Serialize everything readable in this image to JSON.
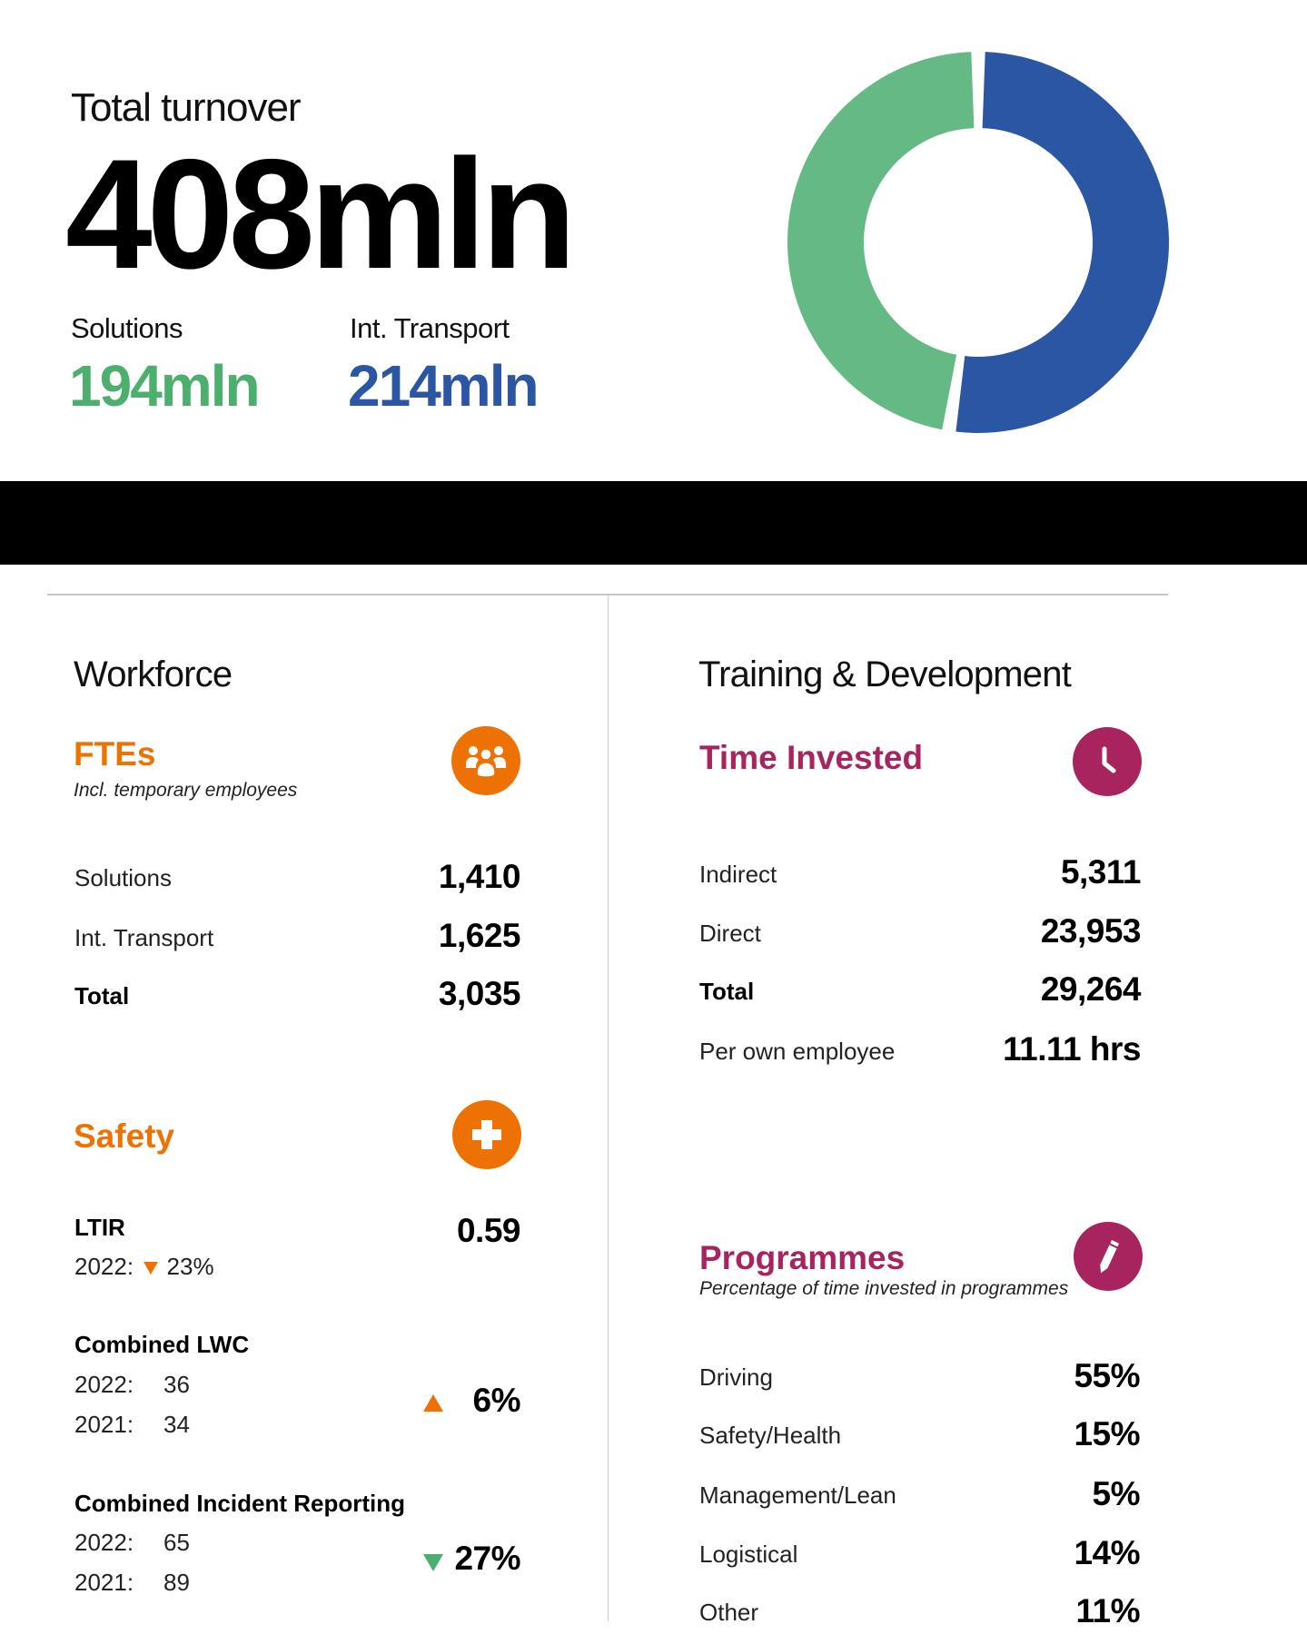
{
  "turnover": {
    "label": "Total turnover",
    "value": "408mln",
    "segments": [
      {
        "label": "Solutions",
        "value": "194mln",
        "color": "#4caf6e"
      },
      {
        "label": "Int. Transport",
        "value": "214mln",
        "color": "#2b56a4"
      }
    ]
  },
  "chart_data": {
    "type": "pie",
    "subtype": "donut",
    "title": "Total turnover",
    "total_label": "408mln",
    "categories": [
      "Solutions",
      "Int. Transport"
    ],
    "values": [
      194,
      214
    ],
    "units": "mln",
    "colors": [
      "#65b984",
      "#2b56a4"
    ],
    "legend": "none (labels shown as text left of chart)"
  },
  "workforce": {
    "title": "Workforce",
    "ftes": {
      "title": "FTEs",
      "caption": "Incl. temporary employees",
      "icon": "people-group-icon",
      "rows": [
        {
          "label": "Solutions",
          "value": "1,410"
        },
        {
          "label": "Int. Transport",
          "value": "1,625"
        },
        {
          "label": "Total",
          "value": "3,035",
          "bold": true
        }
      ]
    },
    "safety": {
      "title": "Safety",
      "icon": "first-aid-cross-icon",
      "ltir": {
        "label": "LTIR",
        "value": "0.59",
        "compare_year": "2022:",
        "change": "23%",
        "direction": "down"
      },
      "lwc": {
        "label": "Combined LWC",
        "rows": [
          {
            "year": "2022:",
            "value": "36"
          },
          {
            "year": "2021:",
            "value": "34"
          }
        ],
        "change": "6%",
        "direction": "up"
      },
      "incident": {
        "label": "Combined Incident Reporting",
        "rows": [
          {
            "year": "2022:",
            "value": "65"
          },
          {
            "year": "2021:",
            "value": "89"
          }
        ],
        "change": "27%",
        "direction": "down"
      }
    }
  },
  "training": {
    "title": "Training & Development",
    "time": {
      "title": "Time Invested",
      "icon": "clock-icon",
      "rows": [
        {
          "label": "Indirect",
          "value": "5,311"
        },
        {
          "label": "Direct",
          "value": "23,953"
        },
        {
          "label": "Total",
          "value": "29,264",
          "bold": true
        },
        {
          "label": "Per own employee",
          "value": "11.11 hrs"
        }
      ]
    },
    "programmes": {
      "title": "Programmes",
      "caption": "Percentage of time invested in programmes",
      "icon": "pencil-icon",
      "rows": [
        {
          "label": "Driving",
          "value": "55%"
        },
        {
          "label": "Safety/Health",
          "value": "15%"
        },
        {
          "label": "Management/Lean",
          "value": "5%"
        },
        {
          "label": "Logistical",
          "value": "14%"
        },
        {
          "label": "Other",
          "value": "11%"
        }
      ]
    }
  },
  "colors": {
    "orange": "#ee7203",
    "magenta": "#a8245f",
    "green": "#4caf6e",
    "blue": "#2b56a4",
    "band": "#000000"
  }
}
